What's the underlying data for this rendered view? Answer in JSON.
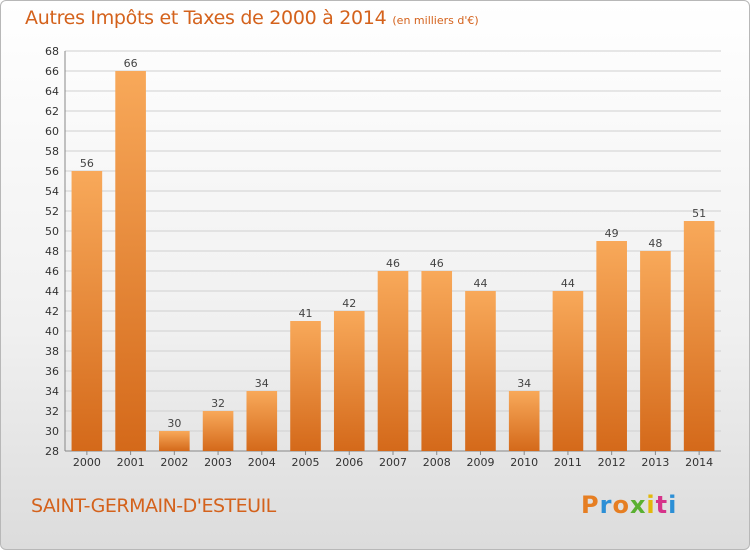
{
  "header": {
    "title": "Autres Impôts et Taxes de 2000 à 2014",
    "subtitle": "(en milliers d'€)"
  },
  "footer": {
    "commune": "SAINT-GERMAIN-D'ESTEUIL",
    "logo": "Proxiti",
    "logo_colors": [
      "#e67e22",
      "#2c8fd6",
      "#e67e22",
      "#5ab031",
      "#e2b80b",
      "#d6338a",
      "#2c8fd6"
    ]
  },
  "colors": {
    "bar_light": "#f8a95a",
    "bar_dark": "#d4691a",
    "grid": "#d0d0d0",
    "accent": "#d4621c"
  },
  "chart_data": {
    "type": "bar",
    "title": "Autres Impôts et Taxes de 2000 à 2014",
    "subtitle": "(en milliers d'€)",
    "categories": [
      "2000",
      "2001",
      "2002",
      "2003",
      "2004",
      "2005",
      "2006",
      "2007",
      "2008",
      "2009",
      "2010",
      "2011",
      "2012",
      "2013",
      "2014"
    ],
    "values": [
      56,
      66,
      30,
      32,
      34,
      41,
      42,
      46,
      46,
      44,
      34,
      44,
      49,
      48,
      51
    ],
    "ylim": [
      28,
      68
    ],
    "ytick_step": 2,
    "grid": true,
    "xlabel": "",
    "ylabel": ""
  }
}
